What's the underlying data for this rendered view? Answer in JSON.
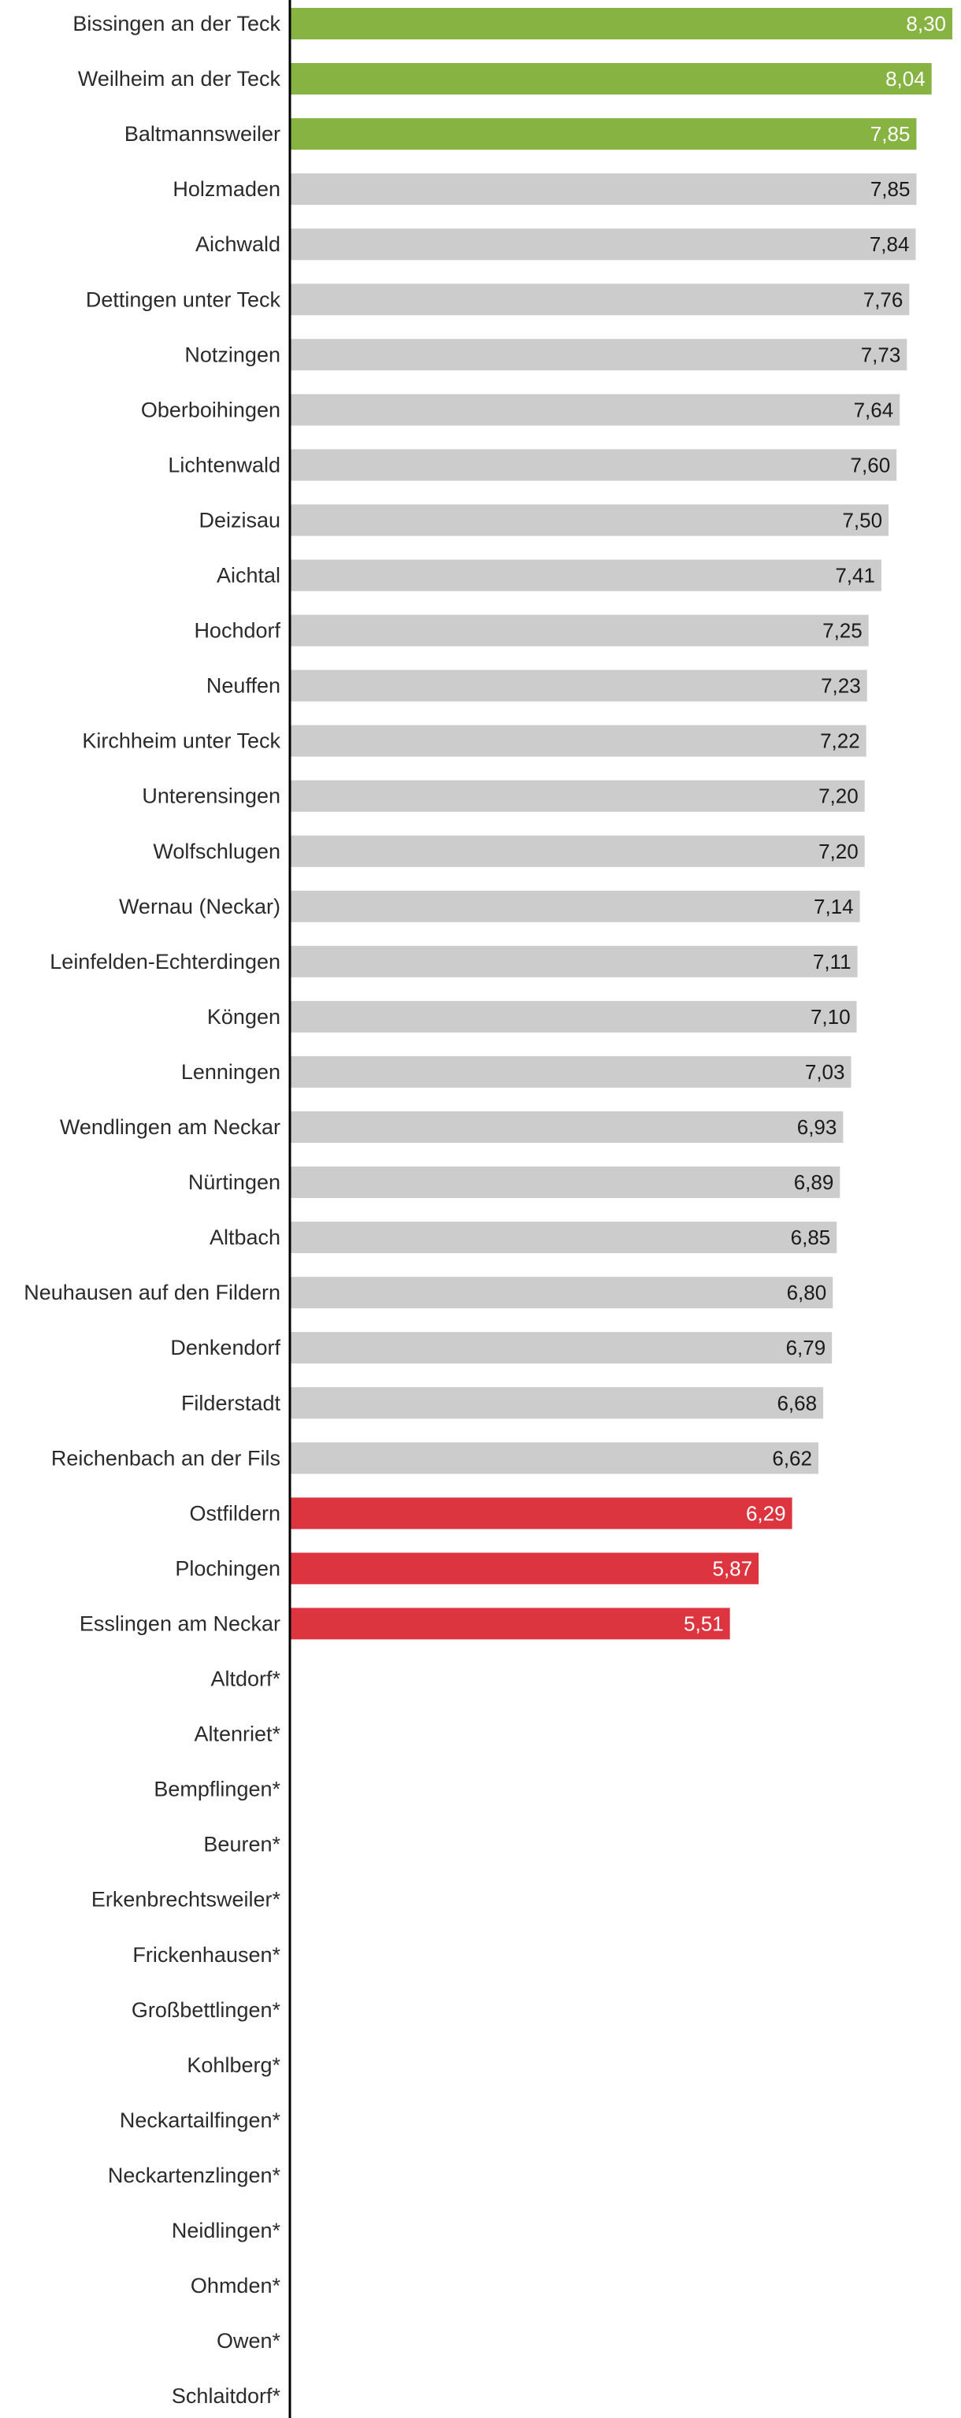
{
  "chart_data": {
    "type": "bar",
    "orientation": "horizontal",
    "xlim": [
      0,
      8.3
    ],
    "grid": false,
    "colors": {
      "top": "#86b342",
      "middle": "#cccccc",
      "bottom": "#dc3540",
      "axis": "#000000",
      "label_on_colored": "#ffffff",
      "label_on_gray": "#1a1a1a"
    },
    "items": [
      {
        "category": "Bissingen an der Teck",
        "value": 8.3,
        "label": "8,30",
        "group": "top"
      },
      {
        "category": "Weilheim an der Teck",
        "value": 8.04,
        "label": "8,04",
        "group": "top"
      },
      {
        "category": "Baltmannsweiler",
        "value": 7.85,
        "label": "7,85",
        "group": "top"
      },
      {
        "category": "Holzmaden",
        "value": 7.85,
        "label": "7,85",
        "group": "middle"
      },
      {
        "category": "Aichwald",
        "value": 7.84,
        "label": "7,84",
        "group": "middle"
      },
      {
        "category": "Dettingen unter Teck",
        "value": 7.76,
        "label": "7,76",
        "group": "middle"
      },
      {
        "category": "Notzingen",
        "value": 7.73,
        "label": "7,73",
        "group": "middle"
      },
      {
        "category": "Oberboihingen",
        "value": 7.64,
        "label": "7,64",
        "group": "middle"
      },
      {
        "category": "Lichtenwald",
        "value": 7.6,
        "label": "7,60",
        "group": "middle"
      },
      {
        "category": "Deizisau",
        "value": 7.5,
        "label": "7,50",
        "group": "middle"
      },
      {
        "category": "Aichtal",
        "value": 7.41,
        "label": "7,41",
        "group": "middle"
      },
      {
        "category": "Hochdorf",
        "value": 7.25,
        "label": "7,25",
        "group": "middle"
      },
      {
        "category": "Neuffen",
        "value": 7.23,
        "label": "7,23",
        "group": "middle"
      },
      {
        "category": "Kirchheim unter Teck",
        "value": 7.22,
        "label": "7,22",
        "group": "middle"
      },
      {
        "category": "Unterensingen",
        "value": 7.2,
        "label": "7,20",
        "group": "middle"
      },
      {
        "category": "Wolfschlugen",
        "value": 7.2,
        "label": "7,20",
        "group": "middle"
      },
      {
        "category": "Wernau (Neckar)",
        "value": 7.14,
        "label": "7,14",
        "group": "middle"
      },
      {
        "category": "Leinfelden-Echterdingen",
        "value": 7.11,
        "label": "7,11",
        "group": "middle"
      },
      {
        "category": "Köngen",
        "value": 7.1,
        "label": "7,10",
        "group": "middle"
      },
      {
        "category": "Lenningen",
        "value": 7.03,
        "label": "7,03",
        "group": "middle"
      },
      {
        "category": "Wendlingen am Neckar",
        "value": 6.93,
        "label": "6,93",
        "group": "middle"
      },
      {
        "category": "Nürtingen",
        "value": 6.89,
        "label": "6,89",
        "group": "middle"
      },
      {
        "category": "Altbach",
        "value": 6.85,
        "label": "6,85",
        "group": "middle"
      },
      {
        "category": "Neuhausen auf den Fildern",
        "value": 6.8,
        "label": "6,80",
        "group": "middle"
      },
      {
        "category": "Denkendorf",
        "value": 6.79,
        "label": "6,79",
        "group": "middle"
      },
      {
        "category": "Filderstadt",
        "value": 6.68,
        "label": "6,68",
        "group": "middle"
      },
      {
        "category": "Reichenbach an der Fils",
        "value": 6.62,
        "label": "6,62",
        "group": "middle"
      },
      {
        "category": "Ostfildern",
        "value": 6.29,
        "label": "6,29",
        "group": "bottom"
      },
      {
        "category": "Plochingen",
        "value": 5.87,
        "label": "5,87",
        "group": "bottom"
      },
      {
        "category": "Esslingen am Neckar",
        "value": 5.51,
        "label": "5,51",
        "group": "bottom"
      },
      {
        "category": "Altdorf*",
        "value": null,
        "label": null,
        "group": "none"
      },
      {
        "category": "Altenriet*",
        "value": null,
        "label": null,
        "group": "none"
      },
      {
        "category": "Bempflingen*",
        "value": null,
        "label": null,
        "group": "none"
      },
      {
        "category": "Beuren*",
        "value": null,
        "label": null,
        "group": "none"
      },
      {
        "category": "Erkenbrechtsweiler*",
        "value": null,
        "label": null,
        "group": "none"
      },
      {
        "category": "Frickenhausen*",
        "value": null,
        "label": null,
        "group": "none"
      },
      {
        "category": "Großbettlingen*",
        "value": null,
        "label": null,
        "group": "none"
      },
      {
        "category": "Kohlberg*",
        "value": null,
        "label": null,
        "group": "none"
      },
      {
        "category": "Neckartailfingen*",
        "value": null,
        "label": null,
        "group": "none"
      },
      {
        "category": "Neckartenzlingen*",
        "value": null,
        "label": null,
        "group": "none"
      },
      {
        "category": "Neidlingen*",
        "value": null,
        "label": null,
        "group": "none"
      },
      {
        "category": "Ohmden*",
        "value": null,
        "label": null,
        "group": "none"
      },
      {
        "category": "Owen*",
        "value": null,
        "label": null,
        "group": "none"
      },
      {
        "category": "Schlaitdorf*",
        "value": null,
        "label": null,
        "group": "none"
      }
    ]
  }
}
